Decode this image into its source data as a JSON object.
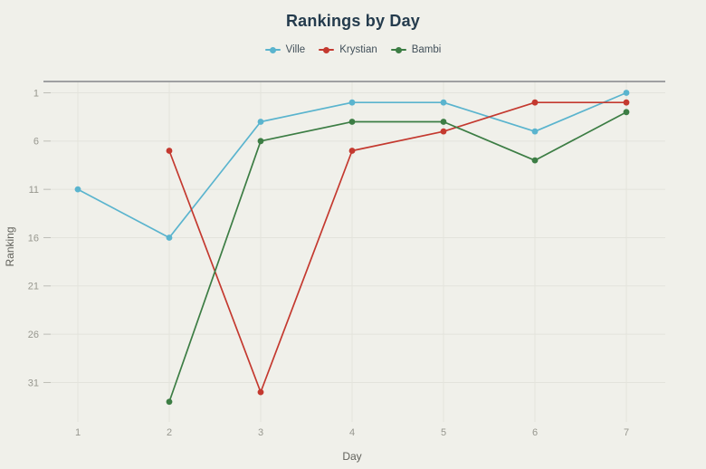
{
  "title": "Rankings by Day",
  "colors": {
    "background": "#f0f0ea",
    "title_text": "#243b4d",
    "legend_text": "#42505a",
    "top_border": "#84868a",
    "grid": "#e3e3dc",
    "tick_mark": "#bdbdb6",
    "tick_text": "#97978f",
    "axis_title_text": "#61615b"
  },
  "chart_data": {
    "type": "line",
    "title": "Rankings by Day",
    "xlabel": "Day",
    "ylabel": "Ranking",
    "x_ticks": [
      1,
      2,
      3,
      4,
      5,
      6,
      7
    ],
    "y_ticks": [
      1,
      6,
      11,
      16,
      21,
      26,
      31
    ],
    "y_axis_reversed": true,
    "xlim": [
      1,
      7
    ],
    "ylim": [
      1,
      33
    ],
    "grid": true,
    "legend_position": "top-center",
    "marker": "circle",
    "series": [
      {
        "name": "Ville",
        "color": "#5ab4ce",
        "points": [
          [
            1,
            11
          ],
          [
            2,
            16
          ],
          [
            3,
            4
          ],
          [
            4,
            2
          ],
          [
            5,
            2
          ],
          [
            6,
            5
          ],
          [
            7,
            1
          ]
        ]
      },
      {
        "name": "Krystian",
        "color": "#c4392f",
        "points": [
          [
            2,
            7
          ],
          [
            3,
            32
          ],
          [
            4,
            7
          ],
          [
            5,
            5
          ],
          [
            6,
            2
          ],
          [
            7,
            2
          ]
        ]
      },
      {
        "name": "Bambi",
        "color": "#3c7d44",
        "points": [
          [
            2,
            33
          ],
          [
            3,
            6
          ],
          [
            4,
            4
          ],
          [
            5,
            4
          ],
          [
            6,
            8
          ],
          [
            7,
            3
          ]
        ]
      }
    ]
  }
}
